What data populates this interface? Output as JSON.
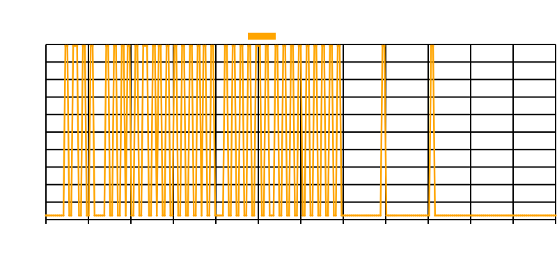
{
  "chart_data": {
    "type": "line",
    "title": "",
    "xlabel": "",
    "ylabel": "",
    "ylim": [
      0,
      1
    ],
    "grid": true,
    "legend_position": "top-center",
    "series_color": "#FFA500",
    "series": [
      {
        "name": "",
        "pattern": [
          0,
          0,
          0,
          0,
          0,
          0,
          0,
          0,
          0,
          0,
          1,
          1,
          0,
          0,
          1,
          1,
          1,
          0,
          0,
          1,
          1,
          0,
          0,
          1,
          1,
          0,
          0,
          0,
          0,
          0,
          0,
          1,
          1,
          0,
          0,
          1,
          1,
          0,
          0,
          1,
          1,
          0,
          1,
          1,
          0,
          0,
          1,
          1,
          0,
          0,
          1,
          1,
          1,
          0,
          0,
          1,
          1,
          0,
          1,
          1,
          0,
          0,
          1,
          1,
          0,
          0,
          1,
          1,
          0,
          0,
          1,
          1,
          0,
          0,
          1,
          1,
          0,
          0,
          1,
          1,
          0,
          1,
          1,
          0,
          0,
          1,
          1,
          0,
          0,
          0,
          0,
          0,
          1,
          1,
          0,
          0,
          1,
          1,
          0,
          0,
          1,
          1,
          0,
          0,
          1,
          1,
          0,
          0,
          1,
          1,
          1,
          0,
          0,
          1,
          1,
          0,
          0,
          0,
          1,
          1,
          0,
          0,
          1,
          1,
          0,
          0,
          1,
          1,
          0,
          0,
          1,
          1,
          0,
          0,
          1,
          1,
          0,
          0,
          1,
          1,
          0,
          0,
          1,
          1,
          0,
          0,
          1,
          1,
          0,
          0,
          1,
          1,
          0,
          0,
          0,
          0,
          0,
          0,
          0,
          0,
          0,
          0,
          0,
          0,
          0,
          0,
          0,
          0,
          0,
          0,
          0,
          0,
          0,
          1,
          1,
          0,
          0,
          0,
          0,
          0,
          0,
          0,
          0,
          0,
          0,
          0,
          0,
          0,
          0,
          0,
          0,
          0,
          0,
          0,
          0,
          0,
          0,
          0,
          1,
          1,
          0,
          0,
          0,
          0,
          0,
          0,
          0,
          0,
          0,
          0,
          0,
          0,
          0,
          0,
          0,
          0,
          0,
          0,
          0,
          0,
          0,
          0,
          0,
          0,
          0,
          0,
          0,
          0,
          0,
          0,
          0,
          0,
          0,
          0,
          0,
          0,
          0,
          0,
          0,
          0,
          0,
          0,
          0,
          0,
          0,
          0,
          0,
          0,
          0,
          0,
          0,
          0,
          0,
          0,
          0,
          0,
          0,
          0,
          0,
          0,
          0,
          0,
          0
        ]
      }
    ],
    "y_ticks": [
      "",
      "",
      "",
      "",
      "",
      "",
      "",
      "",
      "",
      "",
      ""
    ],
    "x_ticks": [
      "",
      "",
      "",
      "",
      "",
      "",
      "",
      "",
      "",
      "",
      "",
      "",
      ""
    ]
  }
}
